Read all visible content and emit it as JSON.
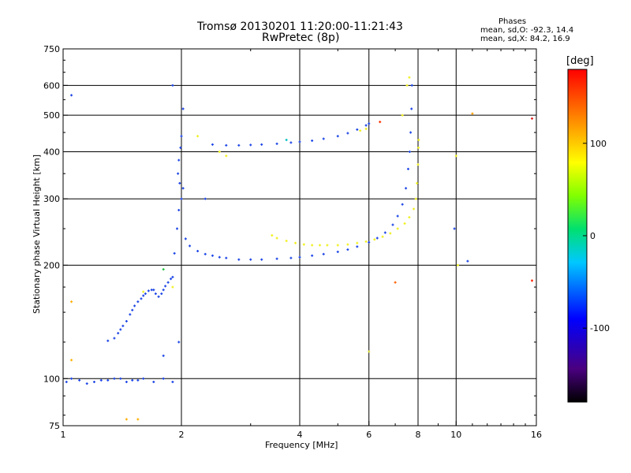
{
  "title": "Tromsø 20130201 11:20:00-11:21:43",
  "subtitle": "RwPretec (8p)",
  "phases": {
    "header": "Phases",
    "o_line": "mean, sd,O: -92.3, 14.4",
    "x_line": "mean, sd,X:  84.2, 16.9"
  },
  "colorbar": {
    "unit": "[deg]",
    "range": [
      -180,
      180
    ],
    "ticks": [
      -100,
      0,
      100
    ],
    "tick_labels": [
      "-100",
      "0",
      "100"
    ]
  },
  "chart_data": {
    "type": "scatter",
    "title": "Tromsø 20130201 11:20:00-11:21:43",
    "subtitle": "RwPretec (8p)",
    "xlabel": "Frequency [MHz]",
    "ylabel": "Stationary phase Virtual Height [km]",
    "x_scale": "log",
    "y_scale": "log",
    "xlim": [
      1,
      16
    ],
    "ylim": [
      75,
      750
    ],
    "x_ticks": [
      1,
      2,
      4,
      6,
      8,
      10,
      16
    ],
    "x_tick_labels": [
      "1",
      "2",
      "4",
      "6",
      "8",
      "10",
      "16"
    ],
    "y_ticks": [
      75,
      100,
      200,
      300,
      400,
      500,
      600,
      750
    ],
    "y_tick_labels": [
      "75",
      "100",
      "200",
      "300",
      "400",
      "500",
      "600",
      "750"
    ],
    "grid": true,
    "color_variable": "phase [deg]",
    "series": [
      {
        "phase_deg": -92.3,
        "color": "#1e46e6",
        "points": [
          [
            1.02,
            98
          ],
          [
            1.05,
            100
          ],
          [
            1.1,
            99
          ],
          [
            1.15,
            97
          ],
          [
            1.2,
            98
          ],
          [
            1.25,
            99
          ],
          [
            1.3,
            99
          ],
          [
            1.35,
            100
          ],
          [
            1.4,
            100
          ],
          [
            1.45,
            98
          ],
          [
            1.5,
            99
          ],
          [
            1.55,
            99
          ],
          [
            1.6,
            100
          ],
          [
            1.7,
            98
          ],
          [
            1.8,
            100
          ],
          [
            1.9,
            98
          ],
          [
            1.3,
            126
          ],
          [
            1.35,
            128
          ],
          [
            1.38,
            132
          ],
          [
            1.4,
            135
          ],
          [
            1.42,
            138
          ],
          [
            1.45,
            142
          ],
          [
            1.48,
            148
          ],
          [
            1.5,
            152
          ],
          [
            1.52,
            156
          ],
          [
            1.55,
            160
          ],
          [
            1.58,
            163
          ],
          [
            1.6,
            166
          ],
          [
            1.62,
            168
          ],
          [
            1.65,
            171
          ],
          [
            1.68,
            172
          ],
          [
            1.7,
            172
          ],
          [
            1.72,
            168
          ],
          [
            1.75,
            165
          ],
          [
            1.78,
            168
          ],
          [
            1.8,
            172
          ],
          [
            1.82,
            176
          ],
          [
            1.85,
            180
          ],
          [
            1.88,
            184
          ],
          [
            1.9,
            186
          ],
          [
            1.92,
            215
          ],
          [
            1.95,
            250
          ],
          [
            1.97,
            280
          ],
          [
            2.0,
            300
          ],
          [
            2.02,
            320
          ],
          [
            1.98,
            330
          ],
          [
            1.96,
            350
          ],
          [
            1.97,
            380
          ],
          [
            1.99,
            410
          ],
          [
            2.0,
            440
          ],
          [
            2.02,
            520
          ],
          [
            2.05,
            235
          ],
          [
            2.1,
            225
          ],
          [
            2.2,
            218
          ],
          [
            2.3,
            214
          ],
          [
            2.4,
            212
          ],
          [
            2.5,
            210
          ],
          [
            2.6,
            209
          ],
          [
            2.8,
            207
          ],
          [
            3.0,
            207
          ],
          [
            3.2,
            207
          ],
          [
            3.5,
            208
          ],
          [
            3.8,
            209
          ],
          [
            4.0,
            210
          ],
          [
            4.3,
            212
          ],
          [
            4.6,
            214
          ],
          [
            5.0,
            217
          ],
          [
            5.3,
            220
          ],
          [
            5.6,
            224
          ],
          [
            6.0,
            230
          ],
          [
            6.3,
            236
          ],
          [
            6.6,
            244
          ],
          [
            6.9,
            256
          ],
          [
            7.1,
            270
          ],
          [
            7.3,
            290
          ],
          [
            7.45,
            320
          ],
          [
            7.55,
            360
          ],
          [
            7.62,
            400
          ],
          [
            7.66,
            450
          ],
          [
            7.7,
            520
          ],
          [
            7.72,
            600
          ],
          [
            2.4,
            418
          ],
          [
            2.6,
            416
          ],
          [
            2.8,
            416
          ],
          [
            3.0,
            417
          ],
          [
            3.2,
            418
          ],
          [
            3.5,
            420
          ],
          [
            3.8,
            423
          ],
          [
            4.0,
            425
          ],
          [
            4.3,
            428
          ],
          [
            4.6,
            433
          ],
          [
            5.0,
            440
          ],
          [
            5.3,
            448
          ],
          [
            5.6,
            458
          ],
          [
            5.9,
            470
          ],
          [
            6.0,
            475
          ],
          [
            1.05,
            565
          ],
          [
            1.9,
            600
          ],
          [
            2.3,
            300
          ],
          [
            9.9,
            250
          ],
          [
            10.7,
            205
          ],
          [
            1.97,
            125
          ],
          [
            1.8,
            115
          ]
        ]
      },
      {
        "phase_deg": 84.2,
        "color": "#f0f01e",
        "points": [
          [
            3.4,
            240
          ],
          [
            3.5,
            236
          ],
          [
            3.7,
            232
          ],
          [
            3.9,
            229
          ],
          [
            4.1,
            227
          ],
          [
            4.3,
            226
          ],
          [
            4.5,
            226
          ],
          [
            4.7,
            226
          ],
          [
            5.0,
            226
          ],
          [
            5.3,
            227
          ],
          [
            5.6,
            229
          ],
          [
            5.9,
            231
          ],
          [
            6.2,
            234
          ],
          [
            6.5,
            238
          ],
          [
            6.8,
            243
          ],
          [
            7.1,
            250
          ],
          [
            7.4,
            258
          ],
          [
            7.6,
            268
          ],
          [
            7.8,
            282
          ],
          [
            7.9,
            300
          ],
          [
            7.95,
            330
          ],
          [
            8.0,
            370
          ],
          [
            8.02,
            410
          ],
          [
            8.03,
            430
          ],
          [
            7.3,
            500
          ],
          [
            7.5,
            600
          ],
          [
            7.6,
            630
          ],
          [
            5.9,
            460
          ],
          [
            5.7,
            455
          ],
          [
            2.2,
            440
          ],
          [
            2.5,
            400
          ],
          [
            2.6,
            390
          ],
          [
            10.0,
            390
          ],
          [
            10.1,
            200
          ],
          [
            1.9,
            175
          ],
          [
            1.6,
            170
          ]
        ]
      }
    ],
    "scatter_points": [
      {
        "x": 1.8,
        "y": 195,
        "c": "#20c040"
      },
      {
        "x": 7.0,
        "y": 180,
        "c": "#ff6000"
      },
      {
        "x": 11.0,
        "y": 505,
        "c": "#ffa000"
      },
      {
        "x": 15.6,
        "y": 182,
        "c": "#ff2000"
      },
      {
        "x": 6.4,
        "y": 480,
        "c": "#ff3000"
      },
      {
        "x": 15.6,
        "y": 490,
        "c": "#e02020"
      },
      {
        "x": 3.7,
        "y": 430,
        "c": "#00c0c0"
      },
      {
        "x": 1.45,
        "y": 78,
        "c": "#ffb000"
      },
      {
        "x": 1.55,
        "y": 78,
        "c": "#ffb000"
      },
      {
        "x": 1.05,
        "y": 160,
        "c": "#ffb000"
      },
      {
        "x": 1.05,
        "y": 112,
        "c": "#ffb000"
      },
      {
        "x": 6.0,
        "y": 118,
        "c": "#e0e040"
      }
    ]
  }
}
